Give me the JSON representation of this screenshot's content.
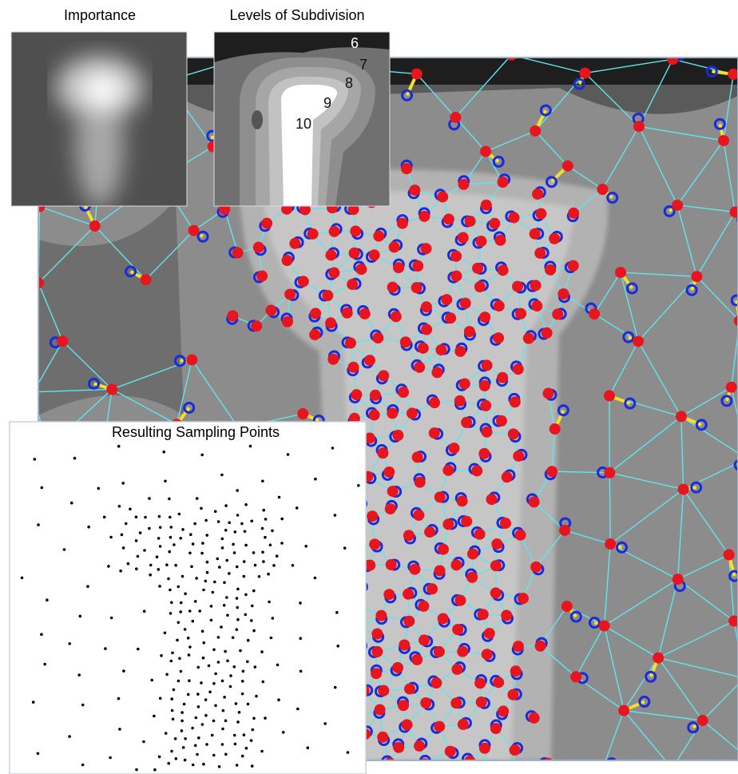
{
  "panels": {
    "importance": {
      "title": "Importance"
    },
    "levels": {
      "title": "Levels of Subdivision",
      "labels": [
        6,
        7,
        8,
        9,
        10
      ]
    },
    "samples": {
      "title": "Resulting Sampling Points"
    }
  }
}
